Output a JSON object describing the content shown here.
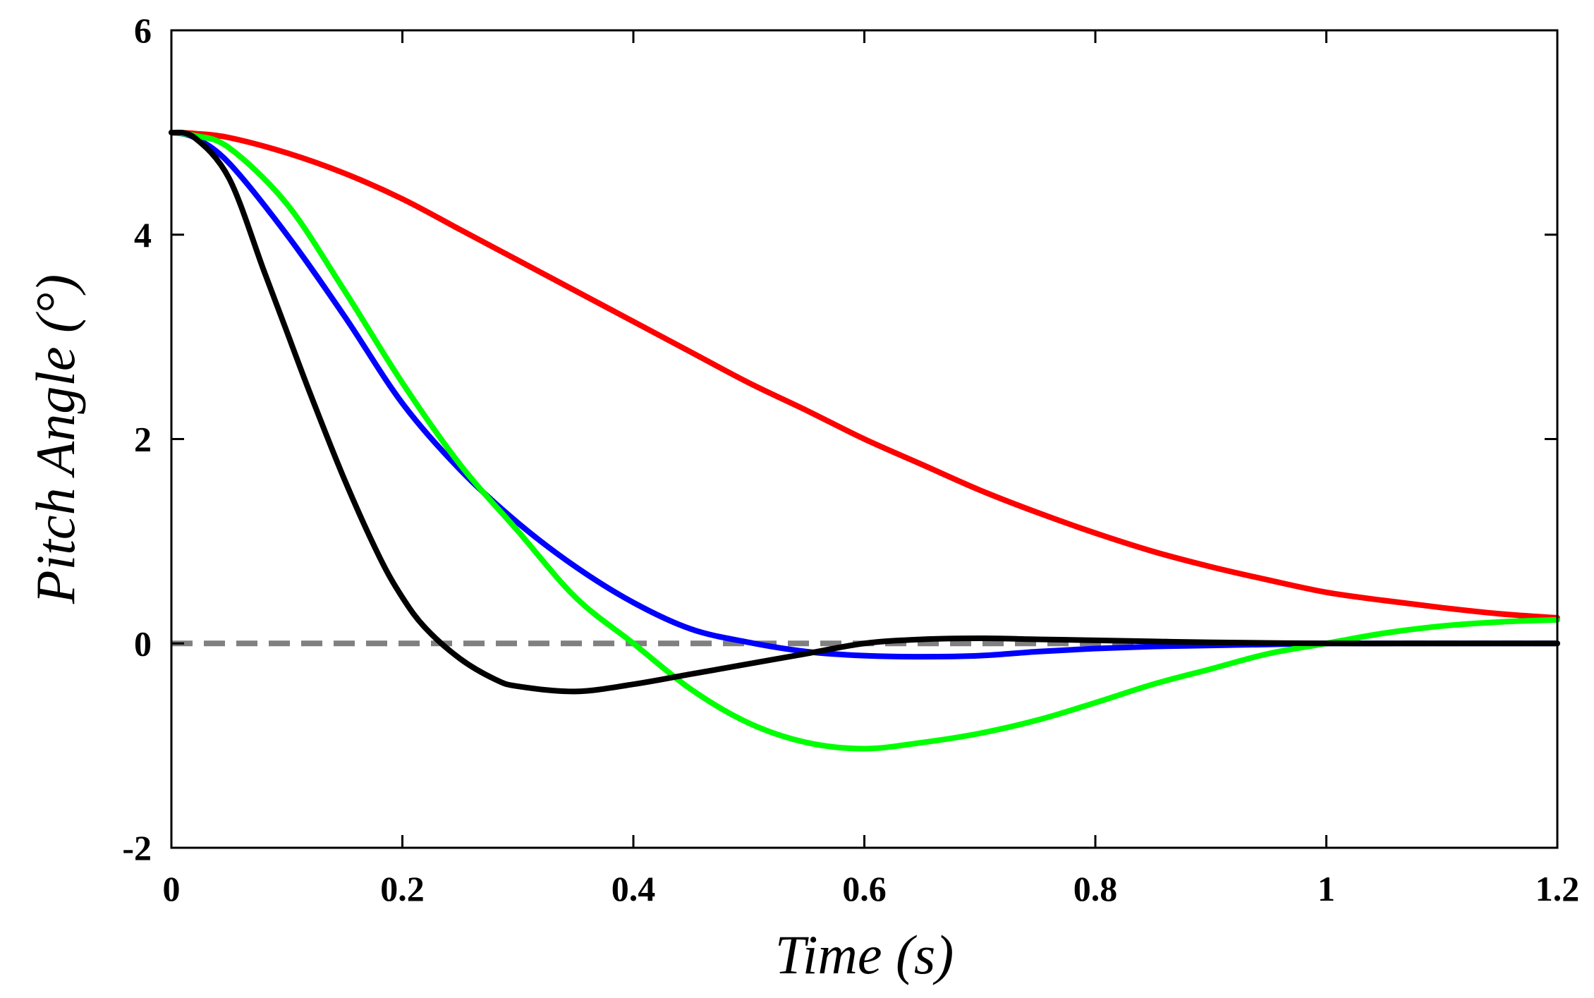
{
  "chart_data": {
    "type": "line",
    "xlabel": "Time (s)",
    "ylabel": "Pitch Angle (°)",
    "xlim": [
      0,
      1.2
    ],
    "ylim": [
      -2,
      6
    ],
    "x_ticks": [
      "0",
      "0.2",
      "0.4",
      "0.6",
      "0.8",
      "1",
      "1.2"
    ],
    "y_ticks": [
      "-2",
      "0",
      "2",
      "4",
      "6"
    ],
    "x_tick_values": [
      0,
      0.2,
      0.4,
      0.6,
      0.8,
      1.0,
      1.2
    ],
    "y_tick_values": [
      -2,
      0,
      2,
      4,
      6
    ],
    "grid": false,
    "reference_line": {
      "y": 0,
      "color": "#808080",
      "style": "dashed"
    },
    "series": [
      {
        "name": "red",
        "color": "#ff0000",
        "x": [
          0,
          0.02,
          0.05,
          0.1,
          0.15,
          0.2,
          0.25,
          0.3,
          0.35,
          0.4,
          0.45,
          0.5,
          0.55,
          0.6,
          0.65,
          0.7,
          0.75,
          0.8,
          0.85,
          0.9,
          0.95,
          1.0,
          1.05,
          1.1,
          1.15,
          1.2
        ],
        "y": [
          5.0,
          4.99,
          4.95,
          4.8,
          4.6,
          4.35,
          4.05,
          3.75,
          3.45,
          3.15,
          2.85,
          2.55,
          2.28,
          2.0,
          1.75,
          1.5,
          1.28,
          1.08,
          0.9,
          0.75,
          0.62,
          0.5,
          0.42,
          0.35,
          0.29,
          0.25
        ]
      },
      {
        "name": "blue",
        "color": "#0000ff",
        "x": [
          0,
          0.02,
          0.05,
          0.1,
          0.15,
          0.2,
          0.25,
          0.3,
          0.35,
          0.4,
          0.45,
          0.5,
          0.55,
          0.6,
          0.65,
          0.7,
          0.75,
          0.8,
          0.85,
          0.9,
          0.95,
          1.0,
          1.05,
          1.1,
          1.15,
          1.2
        ],
        "y": [
          5.0,
          4.95,
          4.7,
          4.0,
          3.2,
          2.35,
          1.7,
          1.18,
          0.75,
          0.4,
          0.14,
          0.01,
          -0.08,
          -0.12,
          -0.13,
          -0.12,
          -0.08,
          -0.05,
          -0.03,
          -0.02,
          -0.01,
          0.0,
          0.0,
          0.0,
          0.0,
          0.0
        ]
      },
      {
        "name": "green",
        "color": "#00ff00",
        "x": [
          0,
          0.02,
          0.05,
          0.1,
          0.15,
          0.2,
          0.25,
          0.3,
          0.35,
          0.4,
          0.45,
          0.5,
          0.55,
          0.6,
          0.65,
          0.7,
          0.75,
          0.8,
          0.85,
          0.9,
          0.95,
          1.0,
          1.05,
          1.1,
          1.15,
          1.2
        ],
        "y": [
          5.0,
          4.97,
          4.85,
          4.3,
          3.45,
          2.55,
          1.75,
          1.1,
          0.45,
          0.0,
          -0.45,
          -0.78,
          -0.97,
          -1.03,
          -0.97,
          -0.88,
          -0.75,
          -0.58,
          -0.4,
          -0.25,
          -0.1,
          0.0,
          0.1,
          0.17,
          0.21,
          0.23
        ]
      },
      {
        "name": "black",
        "color": "#000000",
        "x": [
          0,
          0.02,
          0.05,
          0.08,
          0.1,
          0.12,
          0.15,
          0.18,
          0.2,
          0.22,
          0.25,
          0.28,
          0.3,
          0.35,
          0.4,
          0.45,
          0.5,
          0.55,
          0.6,
          0.65,
          0.7,
          0.75,
          0.8,
          0.85,
          0.9,
          1.0,
          1.1,
          1.2
        ],
        "y": [
          5.0,
          4.95,
          4.55,
          3.65,
          3.05,
          2.45,
          1.6,
          0.85,
          0.45,
          0.15,
          -0.15,
          -0.35,
          -0.42,
          -0.47,
          -0.4,
          -0.3,
          -0.2,
          -0.1,
          0.0,
          0.04,
          0.05,
          0.04,
          0.03,
          0.02,
          0.01,
          0.0,
          0.0,
          0.0
        ]
      }
    ]
  }
}
